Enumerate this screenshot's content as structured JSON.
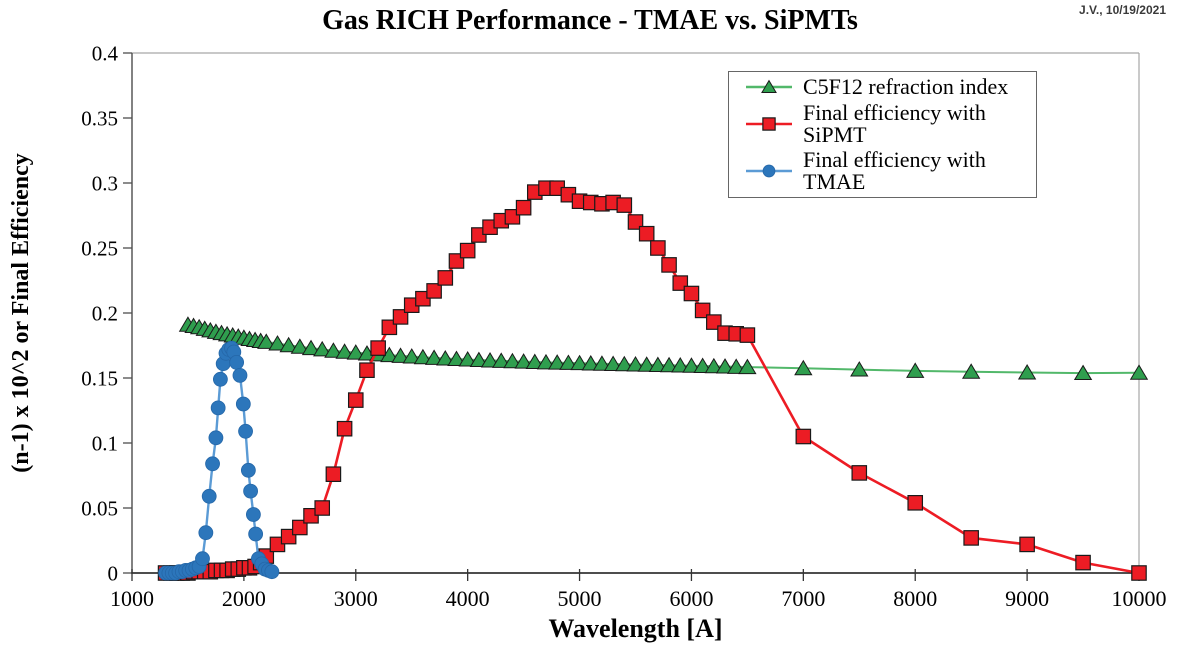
{
  "annotation": "J.V., 10/19/2021",
  "chart_data": {
    "type": "line",
    "title": "Gas RICH Performance - TMAE vs. SiPMTs",
    "xlabel": "Wavelength [A]",
    "ylabel": "(n-1) x 10^2 or Final Efficiency",
    "xlim": [
      1000,
      10000
    ],
    "ylim": [
      0,
      0.4
    ],
    "x_ticks": [
      1000,
      2000,
      3000,
      4000,
      5000,
      6000,
      7000,
      8000,
      9000,
      10000
    ],
    "y_ticks": [
      0,
      0.05,
      0.1,
      0.15,
      0.2,
      0.25,
      0.3,
      0.35,
      0.4
    ],
    "y_tick_labels": [
      "0",
      "0.05",
      "0.1",
      "0.15",
      "0.2",
      "0.25",
      "0.3",
      "0.35",
      "0.4"
    ],
    "grid": false,
    "legend_position": "top-right",
    "frame_colors": {
      "left": "#595959",
      "bottom": "#141414",
      "top": "#a6a6a6",
      "right": "#a6a6a6"
    },
    "series": [
      {
        "name": "C5F12 refraction index",
        "marker": "triangle",
        "marker_color": "#2f9e4e",
        "line_color": "#52b86a",
        "points": [
          [
            1500,
            0.191
          ],
          [
            1550,
            0.19
          ],
          [
            1600,
            0.189
          ],
          [
            1650,
            0.1878
          ],
          [
            1700,
            0.1866
          ],
          [
            1750,
            0.1855
          ],
          [
            1800,
            0.1845
          ],
          [
            1850,
            0.1836
          ],
          [
            1900,
            0.1827
          ],
          [
            1950,
            0.1818
          ],
          [
            2000,
            0.181
          ],
          [
            2050,
            0.18
          ],
          [
            2100,
            0.1792
          ],
          [
            2150,
            0.1785
          ],
          [
            2200,
            0.1778
          ],
          [
            2300,
            0.1765
          ],
          [
            2400,
            0.1752
          ],
          [
            2500,
            0.174
          ],
          [
            2600,
            0.173
          ],
          [
            2700,
            0.172
          ],
          [
            2800,
            0.171
          ],
          [
            2900,
            0.1702
          ],
          [
            3000,
            0.1695
          ],
          [
            3100,
            0.1688
          ],
          [
            3200,
            0.1682
          ],
          [
            3300,
            0.1676
          ],
          [
            3400,
            0.167
          ],
          [
            3500,
            0.1665
          ],
          [
            3600,
            0.166
          ],
          [
            3700,
            0.1655
          ],
          [
            3800,
            0.165
          ],
          [
            3900,
            0.1646
          ],
          [
            4000,
            0.1642
          ],
          [
            4100,
            0.1638
          ],
          [
            4200,
            0.1635
          ],
          [
            4300,
            0.1632
          ],
          [
            4400,
            0.1629
          ],
          [
            4500,
            0.1626
          ],
          [
            4600,
            0.1623
          ],
          [
            4700,
            0.162
          ],
          [
            4800,
            0.1618
          ],
          [
            4900,
            0.1616
          ],
          [
            5000,
            0.1614
          ],
          [
            5100,
            0.1612
          ],
          [
            5200,
            0.161
          ],
          [
            5300,
            0.1608
          ],
          [
            5400,
            0.1606
          ],
          [
            5500,
            0.1604
          ],
          [
            5600,
            0.1602
          ],
          [
            5700,
            0.16
          ],
          [
            5800,
            0.1598
          ],
          [
            5900,
            0.1596
          ],
          [
            6000,
            0.1594
          ],
          [
            6100,
            0.1592
          ],
          [
            6200,
            0.159
          ],
          [
            6300,
            0.1588
          ],
          [
            6400,
            0.1586
          ],
          [
            6500,
            0.1584
          ],
          [
            7000,
            0.1575
          ],
          [
            7500,
            0.1565
          ],
          [
            8000,
            0.1555
          ],
          [
            8500,
            0.1548
          ],
          [
            9000,
            0.1542
          ],
          [
            9500,
            0.1538
          ],
          [
            10000,
            0.154
          ]
        ]
      },
      {
        "name": "Final efficiency with SiPMT",
        "marker": "square",
        "marker_color": "#ec1c24",
        "line_color": "#ed1c24",
        "points": [
          [
            1300,
            0
          ],
          [
            1350,
            0
          ],
          [
            1400,
            0
          ],
          [
            1450,
            0
          ],
          [
            1500,
            0
          ],
          [
            1550,
            0.001
          ],
          [
            1600,
            0.001
          ],
          [
            1650,
            0.001
          ],
          [
            1700,
            0.001
          ],
          [
            1750,
            0.002
          ],
          [
            1800,
            0.002
          ],
          [
            1850,
            0.002
          ],
          [
            1900,
            0.003
          ],
          [
            1950,
            0.003
          ],
          [
            2000,
            0.004
          ],
          [
            2050,
            0.004
          ],
          [
            2100,
            0.005
          ],
          [
            2150,
            0.008
          ],
          [
            2200,
            0.013
          ],
          [
            2300,
            0.022
          ],
          [
            2400,
            0.028
          ],
          [
            2500,
            0.035
          ],
          [
            2600,
            0.044
          ],
          [
            2700,
            0.05
          ],
          [
            2800,
            0.076
          ],
          [
            2900,
            0.111
          ],
          [
            3000,
            0.133
          ],
          [
            3100,
            0.156
          ],
          [
            3200,
            0.173
          ],
          [
            3300,
            0.189
          ],
          [
            3400,
            0.197
          ],
          [
            3500,
            0.206
          ],
          [
            3600,
            0.211
          ],
          [
            3700,
            0.217
          ],
          [
            3800,
            0.227
          ],
          [
            3900,
            0.24
          ],
          [
            4000,
            0.248
          ],
          [
            4100,
            0.26
          ],
          [
            4200,
            0.266
          ],
          [
            4300,
            0.271
          ],
          [
            4400,
            0.274
          ],
          [
            4500,
            0.281
          ],
          [
            4600,
            0.293
          ],
          [
            4700,
            0.296
          ],
          [
            4800,
            0.296
          ],
          [
            4900,
            0.291
          ],
          [
            5000,
            0.286
          ],
          [
            5100,
            0.285
          ],
          [
            5200,
            0.284
          ],
          [
            5300,
            0.285
          ],
          [
            5400,
            0.283
          ],
          [
            5500,
            0.27
          ],
          [
            5600,
            0.261
          ],
          [
            5700,
            0.25
          ],
          [
            5800,
            0.237
          ],
          [
            5900,
            0.223
          ],
          [
            6000,
            0.215
          ],
          [
            6100,
            0.202
          ],
          [
            6200,
            0.193
          ],
          [
            6300,
            0.1845
          ],
          [
            6400,
            0.184
          ],
          [
            6500,
            0.183
          ],
          [
            7000,
            0.105
          ],
          [
            7500,
            0.077
          ],
          [
            8000,
            0.054
          ],
          [
            8500,
            0.027
          ],
          [
            9000,
            0.022
          ],
          [
            9500,
            0.008
          ],
          [
            10000,
            0
          ]
        ]
      },
      {
        "name": "Final efficiency with TMAE",
        "marker": "circle",
        "marker_color": "#2c76bb",
        "line_color": "#5b9bd5",
        "points": [
          [
            1300,
            0
          ],
          [
            1330,
            0
          ],
          [
            1360,
            0
          ],
          [
            1390,
            0
          ],
          [
            1420,
            0.001
          ],
          [
            1450,
            0.001
          ],
          [
            1480,
            0.002
          ],
          [
            1510,
            0.002
          ],
          [
            1540,
            0.003
          ],
          [
            1570,
            0.004
          ],
          [
            1600,
            0.005
          ],
          [
            1630,
            0.011
          ],
          [
            1660,
            0.031
          ],
          [
            1690,
            0.059
          ],
          [
            1720,
            0.084
          ],
          [
            1750,
            0.104
          ],
          [
            1770,
            0.127
          ],
          [
            1790,
            0.149
          ],
          [
            1815,
            0.161
          ],
          [
            1840,
            0.169
          ],
          [
            1865,
            0.172
          ],
          [
            1890,
            0.173
          ],
          [
            1910,
            0.17
          ],
          [
            1935,
            0.162
          ],
          [
            1965,
            0.152
          ],
          [
            1995,
            0.13
          ],
          [
            2015,
            0.109
          ],
          [
            2040,
            0.079
          ],
          [
            2060,
            0.063
          ],
          [
            2085,
            0.045
          ],
          [
            2105,
            0.03
          ],
          [
            2130,
            0.011
          ],
          [
            2160,
            0.007
          ],
          [
            2190,
            0.003
          ],
          [
            2220,
            0.002
          ],
          [
            2250,
            0.001
          ]
        ]
      }
    ]
  }
}
